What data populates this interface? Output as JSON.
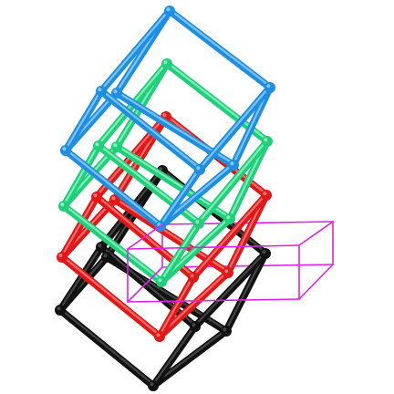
{
  "figure": {
    "description_kind": "wireframe-cubes",
    "background": "#ffffff"
  },
  "cubes": [
    {
      "name": "black-wireframe-cube",
      "color": "#111111",
      "highlight": "#555555",
      "style": "tube"
    },
    {
      "name": "red-wireframe-cube",
      "color": "#e01818",
      "highlight": "#ff8a8a",
      "style": "tube"
    },
    {
      "name": "green-wireframe-cube",
      "color": "#1fd07a",
      "highlight": "#a8f5cc",
      "style": "tube"
    },
    {
      "name": "blue-wireframe-cube",
      "color": "#1e8fe0",
      "highlight": "#9fd4ff",
      "style": "tube"
    }
  ],
  "box": {
    "name": "magenta-wireframe-box",
    "color": "#e020e8",
    "style": "thin"
  }
}
